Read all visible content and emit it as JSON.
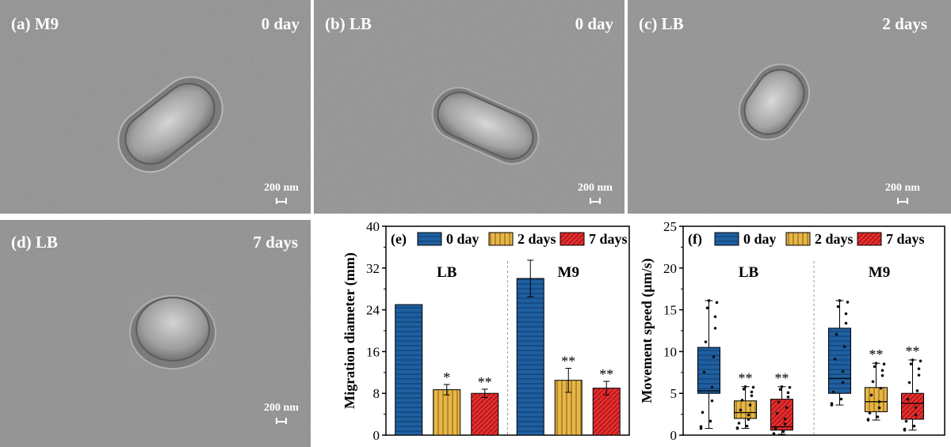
{
  "sem_panels": [
    {
      "label": "(a) M9",
      "time": "0 day",
      "scale": "200 nm"
    },
    {
      "label": "(b) LB",
      "time": "0 day",
      "scale": "200 nm"
    },
    {
      "label": "(c) LB",
      "time": "2 days",
      "scale": "200 nm"
    },
    {
      "label": "(d) LB",
      "time": "7 days",
      "scale": "200 nm"
    }
  ],
  "chart_data": [
    {
      "type": "bar",
      "panel_label": "(e)",
      "ylabel": "Migration diameter (mm)",
      "ylim": [
        0,
        40
      ],
      "yticks": [
        0,
        8,
        16,
        24,
        32,
        40
      ],
      "groups": [
        "LB",
        "M9"
      ],
      "series": [
        {
          "name": "0 day",
          "values": [
            25,
            30
          ],
          "errors": [
            0,
            3.5
          ],
          "sig": [
            "",
            ""
          ]
        },
        {
          "name": "2 days",
          "values": [
            8.7,
            10.5
          ],
          "errors": [
            1.0,
            2.3
          ],
          "sig": [
            "*",
            "**"
          ]
        },
        {
          "name": "7 days",
          "values": [
            8.0,
            9.0
          ],
          "errors": [
            0.8,
            1.3
          ],
          "sig": [
            "**",
            "**"
          ]
        }
      ],
      "colors": [
        "#1f5fa0",
        "#e8b646",
        "#e52d2d"
      ],
      "legend": "top"
    },
    {
      "type": "box",
      "panel_label": "(f)",
      "ylabel": "Movement speed (μm/s)",
      "ylim": [
        0,
        25
      ],
      "yticks": [
        0,
        5,
        10,
        15,
        20,
        25
      ],
      "groups": [
        "LB",
        "M9"
      ],
      "series": [
        {
          "name": "0 day",
          "boxes": [
            {
              "min": 0.8,
              "q1": 5.0,
              "median": 5.3,
              "q3": 10.5,
              "max": 16.1,
              "sig": ""
            },
            {
              "min": 3.6,
              "q1": 5.0,
              "median": 6.8,
              "q3": 12.8,
              "max": 16.1,
              "sig": ""
            }
          ]
        },
        {
          "name": "2 days",
          "boxes": [
            {
              "min": 0.8,
              "q1": 2.0,
              "median": 2.7,
              "q3": 4.1,
              "max": 5.8,
              "sig": "**"
            },
            {
              "min": 1.8,
              "q1": 2.8,
              "median": 4.0,
              "q3": 5.7,
              "max": 8.6,
              "sig": "**"
            }
          ]
        },
        {
          "name": "7 days",
          "boxes": [
            {
              "min": 0.1,
              "q1": 0.6,
              "median": 1.0,
              "q3": 4.3,
              "max": 5.8,
              "sig": "**"
            },
            {
              "min": 0.6,
              "q1": 1.9,
              "median": 3.8,
              "q3": 5.0,
              "max": 9.0,
              "sig": "**"
            }
          ]
        }
      ],
      "colors": [
        "#1f5fa0",
        "#e8b646",
        "#e52d2d"
      ],
      "legend": "top"
    }
  ]
}
